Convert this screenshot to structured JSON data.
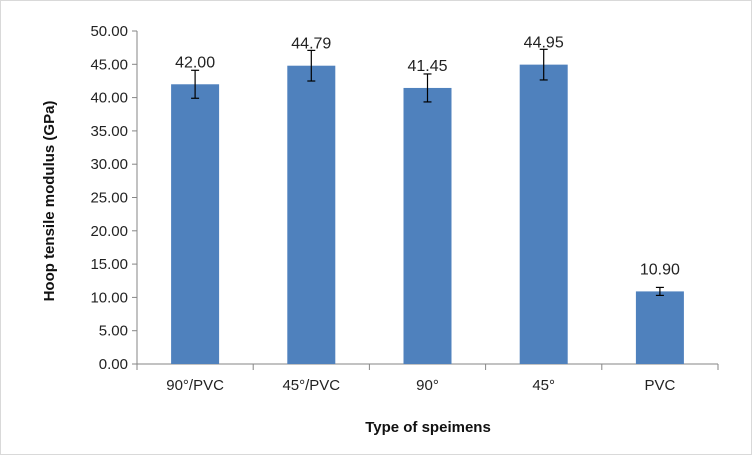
{
  "chart_data": {
    "type": "bar",
    "title": "",
    "xlabel": "Type of speimens",
    "ylabel": "Hoop tensile modulus (GPa)",
    "ylim": [
      0,
      50
    ],
    "ytick_step": 5,
    "ytick_labels": [
      "0.00",
      "5.00",
      "10.00",
      "15.00",
      "20.00",
      "25.00",
      "30.00",
      "35.00",
      "40.00",
      "45.00",
      "50.00"
    ],
    "categories": [
      "90°/PVC",
      "45°/PVC",
      "90°",
      "45°",
      "PVC"
    ],
    "values": [
      42.0,
      44.79,
      41.45,
      44.95,
      10.9
    ],
    "value_labels": [
      "42.00",
      "44.79",
      "41.45",
      "44.95",
      "10.90"
    ],
    "error": [
      2.1,
      2.3,
      2.1,
      2.3,
      0.6
    ],
    "bar_color": "#4f81bd",
    "grid": false,
    "legend": "none"
  }
}
